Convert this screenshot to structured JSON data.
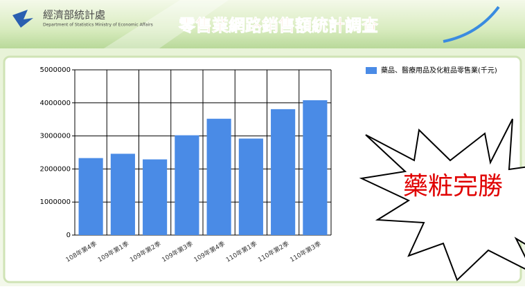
{
  "header": {
    "org": "經濟部統計處",
    "org_en": "Department of Statistics Ministry of Economic Affairs",
    "banner": "零售業網路銷售額統計調查"
  },
  "callout": "藥粧完勝",
  "chart_data": {
    "type": "bar",
    "categories": [
      "108年第4季",
      "109年第1季",
      "109年第2季",
      "109年第3季",
      "109年第4季",
      "110年第1季",
      "110年第2季",
      "110年第3季"
    ],
    "series": [
      {
        "name": "藥品、醫療用品及化粧品零售業(千元)",
        "color": "#4a8be6",
        "values": [
          2330000,
          2460000,
          2290000,
          3020000,
          3520000,
          2920000,
          3810000,
          4080000
        ]
      }
    ],
    "ylim": [
      0,
      5000000
    ],
    "yticks": [
      0,
      1000000,
      2000000,
      3000000,
      4000000,
      5000000
    ],
    "grid": true,
    "legend": "top-right"
  }
}
